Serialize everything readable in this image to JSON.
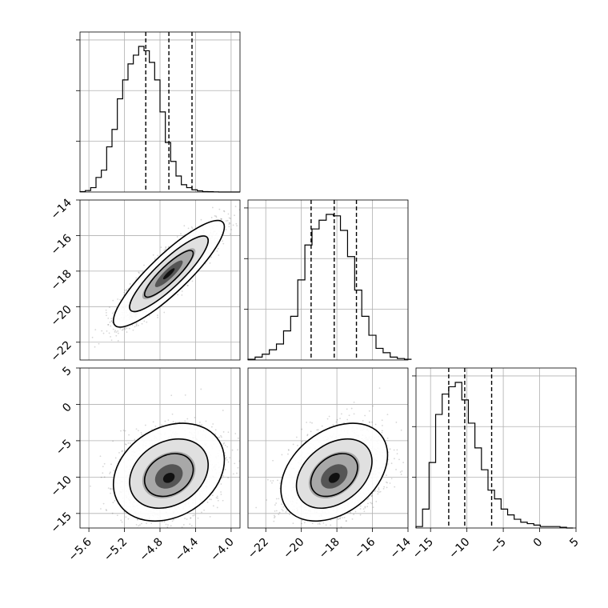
{
  "chart_data": {
    "type": "corner",
    "grid": true,
    "params": [
      {
        "range": [
          -5.7,
          -3.9
        ],
        "ticks": [
          -5.6,
          -5.2,
          -4.8,
          -4.4,
          -4.0
        ],
        "tick_labels": [
          "−5.6",
          "−5.2",
          "−4.8",
          "−4.4",
          "−4.0"
        ],
        "quantiles": [
          -4.96,
          -4.7,
          -4.44
        ],
        "hist_edges_start": -5.7,
        "hist_bin_width": 0.06,
        "hist_counts": [
          0.003,
          0.01,
          0.03,
          0.1,
          0.15,
          0.31,
          0.43,
          0.64,
          0.77,
          0.88,
          0.94,
          1.0,
          0.97,
          0.89,
          0.77,
          0.55,
          0.34,
          0.21,
          0.11,
          0.05,
          0.03,
          0.015,
          0.008,
          0.003,
          0.002,
          0.001,
          0.0,
          0.0,
          0.0,
          0.0
        ]
      },
      {
        "range": [
          -23.0,
          -14.0
        ],
        "ticks": [
          -22,
          -20,
          -18,
          -16,
          -14
        ],
        "tick_labels": [
          "−22",
          "−20",
          "−18",
          "−16",
          "−14"
        ],
        "quantiles": [
          -19.45,
          -18.15,
          -16.9
        ],
        "hist_edges_start": -23.0,
        "hist_bin_width": 0.4,
        "hist_counts": [
          0.005,
          0.02,
          0.04,
          0.07,
          0.11,
          0.2,
          0.3,
          0.55,
          0.79,
          0.9,
          0.96,
          1.0,
          0.99,
          0.89,
          0.71,
          0.48,
          0.3,
          0.17,
          0.08,
          0.05,
          0.02,
          0.01,
          0.005
        ]
      },
      {
        "range": [
          -17.0,
          5.0
        ],
        "ticks": [
          -15,
          -10,
          -5,
          0,
          5
        ],
        "tick_labels": [
          "−15",
          "−10",
          "−5",
          "0",
          "5"
        ],
        "tick_labels_y": [
          "5",
          "0",
          "−5",
          "−10",
          "−15"
        ],
        "quantiles": [
          -12.5,
          -10.3,
          -6.6
        ],
        "hist_edges_start": -17.0,
        "hist_bin_width": 0.9,
        "hist_counts": [
          0.01,
          0.13,
          0.45,
          0.78,
          0.92,
          0.97,
          1.0,
          0.88,
          0.72,
          0.55,
          0.4,
          0.26,
          0.2,
          0.13,
          0.09,
          0.06,
          0.04,
          0.03,
          0.02,
          0.01,
          0.01,
          0.01,
          0.005,
          0.0
        ]
      }
    ],
    "scatter_pairs": [
      {
        "row": 1,
        "col": 0,
        "mean": [
          -4.7,
          -18.15
        ],
        "sd": [
          0.26,
          1.25
        ],
        "rho": 0.88
      },
      {
        "row": 2,
        "col": 0,
        "mean": [
          -4.7,
          -10.3
        ],
        "sd": [
          0.26,
          2.8
        ],
        "rho": 0.25
      },
      {
        "row": 2,
        "col": 1,
        "mean": [
          -18.15,
          -10.3
        ],
        "sd": [
          1.25,
          2.8
        ],
        "rho": 0.35
      }
    ]
  }
}
